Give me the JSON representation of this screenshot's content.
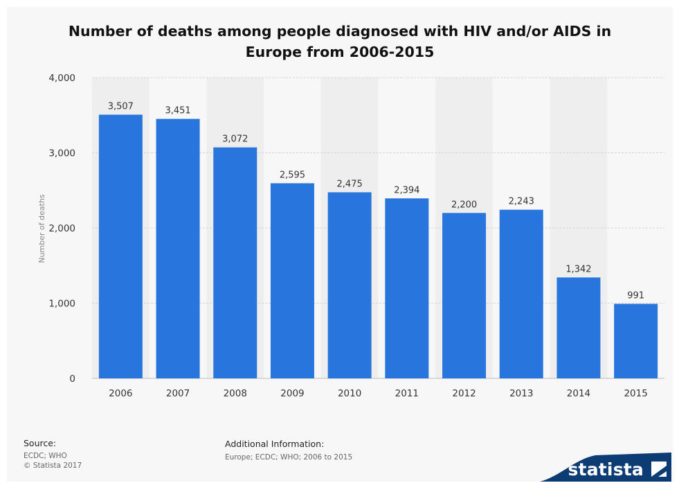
{
  "chart_data": {
    "type": "bar",
    "title_lines": [
      "Number of deaths among people diagnosed with HIV and/or AIDS in",
      "Europe from 2006-2015"
    ],
    "xlabel": "",
    "ylabel": "Number of deaths",
    "categories": [
      "2006",
      "2007",
      "2008",
      "2009",
      "2010",
      "2011",
      "2012",
      "2013",
      "2014",
      "2015"
    ],
    "values": [
      3507,
      3451,
      3072,
      2595,
      2475,
      2394,
      2200,
      2243,
      1342,
      991
    ],
    "value_labels": [
      "3,507",
      "3,451",
      "3,072",
      "2,595",
      "2,475",
      "2,394",
      "2,200",
      "2,243",
      "1,342",
      "991"
    ],
    "ylim": [
      0,
      4000
    ],
    "yticks": [
      0,
      1000,
      2000,
      3000,
      4000
    ],
    "ytick_labels": [
      "0",
      "1,000",
      "2,000",
      "3,000",
      "4,000"
    ],
    "grid": true,
    "bar_color": "#2876dd"
  },
  "footer": {
    "source_heading": "Source:",
    "source_lines": [
      "ECDC; WHO",
      "© Statista 2017"
    ],
    "info_heading": "Additional Information:",
    "info_text": "Europe; ECDC; WHO; 2006 to 2015"
  },
  "brand": {
    "name": "statista",
    "color": "#0d3c74"
  }
}
